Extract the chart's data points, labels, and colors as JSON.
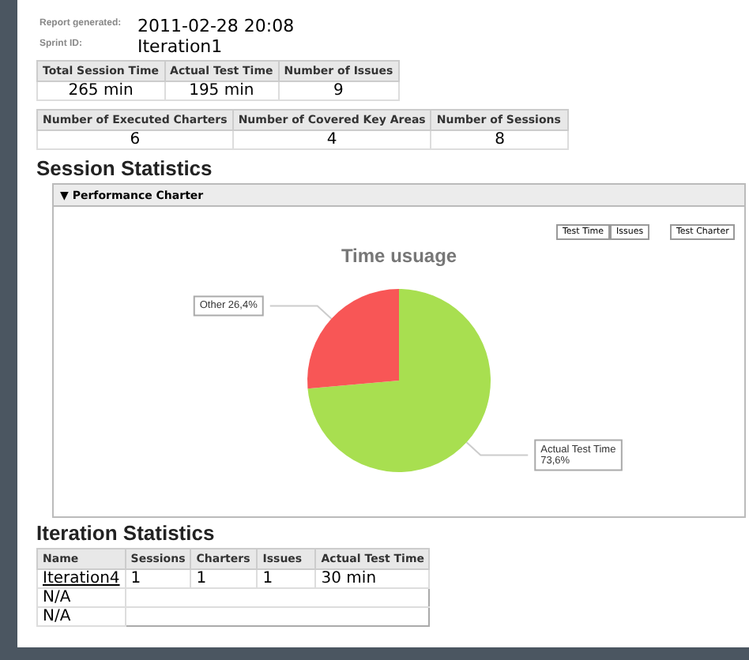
{
  "chart_data": {
    "type": "pie",
    "title": "Time usuage",
    "categories": [
      "Actual Test Time",
      "Other"
    ],
    "values": [
      73.6,
      26.4
    ],
    "value_labels": [
      "73,6%",
      "26,4%"
    ],
    "colors": [
      "#a8df50",
      "#f85656"
    ],
    "legend": false,
    "annotations": [
      "Report generated:",
      "2011-02-28 20:08",
      "Sprint ID:",
      "Iteration1",
      "Total Session Time",
      "Actual Test Time",
      "Number of Issues",
      "265 min",
      "195 min",
      "9",
      "Number of Executed Charters",
      "Number of Covered Key Areas",
      "Number of Sessions",
      "6",
      "4",
      "8",
      "Session Statistics",
      "▼ Performance Charter",
      "Test Time",
      "Issues",
      "Test Charter",
      "Iteration Statistics",
      "Name",
      "Sessions",
      "Charters",
      "Issues",
      "Actual Test Time",
      "Iteration4",
      "1",
      "1",
      "1",
      "30 min",
      "N/A",
      "N/A"
    ]
  }
}
